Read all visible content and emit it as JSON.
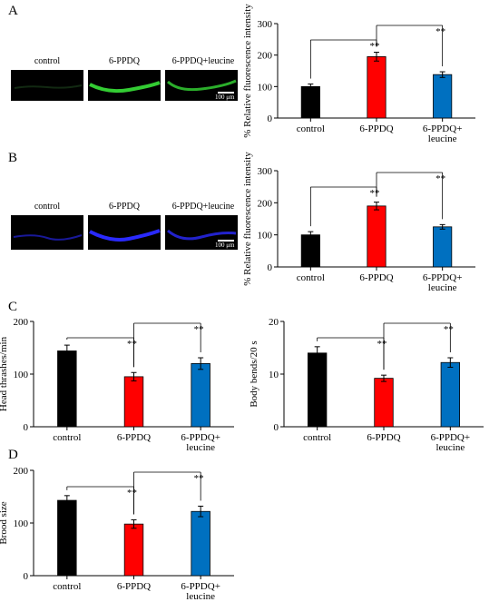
{
  "panels": {
    "a": {
      "letter": "A",
      "image_labels": [
        "control",
        "6-PPDQ",
        "6-PPDQ+leucine"
      ],
      "scale_bar": "100 μm",
      "fluor_color": "#33cc33"
    },
    "b": {
      "letter": "B",
      "image_labels": [
        "control",
        "6-PPDQ",
        "6-PPDQ+leucine"
      ],
      "scale_bar": "100 μm",
      "fluor_color": "#2a2aff"
    },
    "c": {
      "letter": "C"
    },
    "d": {
      "letter": "D"
    }
  },
  "bar_colors": [
    "#000000",
    "#ff0000",
    "#0070c0"
  ],
  "chart_data": [
    {
      "id": "A",
      "type": "bar",
      "categories": [
        "control",
        "6-PPDQ",
        "6-PPDQ+\nleucine"
      ],
      "values": [
        100,
        195,
        138
      ],
      "errors": [
        8,
        14,
        9
      ],
      "ylabel": "% Relative fluorescence intensity",
      "ylim": [
        0,
        300
      ],
      "yticks": [
        0,
        100,
        200,
        300
      ],
      "significance": [
        {
          "from": 0,
          "to": 1,
          "label": "**"
        },
        {
          "from": 1,
          "to": 2,
          "label": "**"
        }
      ]
    },
    {
      "id": "B",
      "type": "bar",
      "categories": [
        "control",
        "6-PPDQ",
        "6-PPDQ+\nleucine"
      ],
      "values": [
        100,
        190,
        125
      ],
      "errors": [
        10,
        12,
        7
      ],
      "ylabel": "% Relative fluorescence intensity",
      "ylim": [
        0,
        300
      ],
      "yticks": [
        0,
        100,
        200,
        300
      ],
      "significance": [
        {
          "from": 0,
          "to": 1,
          "label": "**"
        },
        {
          "from": 1,
          "to": 2,
          "label": "**"
        }
      ]
    },
    {
      "id": "C1",
      "type": "bar",
      "categories": [
        "control",
        "6-PPDQ",
        "6-PPDQ+\nleucine"
      ],
      "values": [
        144,
        95,
        120
      ],
      "errors": [
        11,
        8,
        11
      ],
      "ylabel": "Head thrashes/min",
      "ylim": [
        0,
        200
      ],
      "yticks": [
        0,
        100,
        200
      ],
      "significance": [
        {
          "from": 0,
          "to": 1,
          "label": "**"
        },
        {
          "from": 1,
          "to": 2,
          "label": "**"
        }
      ]
    },
    {
      "id": "C2",
      "type": "bar",
      "categories": [
        "control",
        "6-PPDQ",
        "6-PPDQ+\nleucine"
      ],
      "values": [
        14,
        9.2,
        12.2
      ],
      "errors": [
        1.2,
        0.6,
        0.9
      ],
      "ylabel": "Body bends/20 s",
      "ylim": [
        0,
        20
      ],
      "yticks": [
        0,
        10,
        20
      ],
      "significance": [
        {
          "from": 0,
          "to": 1,
          "label": "**"
        },
        {
          "from": 1,
          "to": 2,
          "label": "**"
        }
      ]
    },
    {
      "id": "D",
      "type": "bar",
      "categories": [
        "control",
        "6-PPDQ",
        "6-PPDQ+\nleucine"
      ],
      "values": [
        143,
        98,
        122
      ],
      "errors": [
        9,
        8,
        10
      ],
      "ylabel": "Brood size",
      "ylim": [
        0,
        200
      ],
      "yticks": [
        0,
        100,
        200
      ],
      "significance": [
        {
          "from": 0,
          "to": 1,
          "label": "**"
        },
        {
          "from": 1,
          "to": 2,
          "label": "**"
        }
      ]
    }
  ]
}
